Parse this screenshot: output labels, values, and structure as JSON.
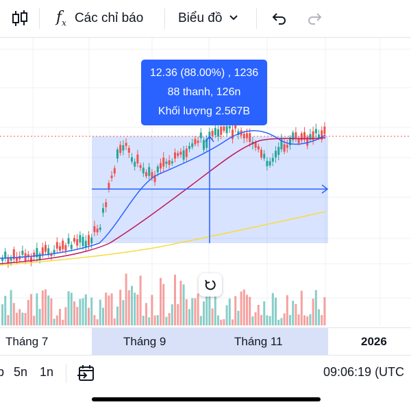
{
  "toolbar": {
    "indicators_label": "Các chỉ báo",
    "chart_type_label": "Biểu đồ",
    "icons": [
      "candles-icon",
      "indicator-fx-icon",
      "chevron-down-icon",
      "undo-icon",
      "redo-icon"
    ]
  },
  "tooltip": {
    "line1": "12.36 (88.00%) , 1236",
    "line2": "88 thanh, 126n",
    "line3": "Khối lượng 2.567B"
  },
  "time_axis": {
    "labels": [
      "Tháng 7",
      "Tháng 9",
      "Tháng 11",
      "2026"
    ]
  },
  "bottom_bar": {
    "ranges": [
      "b",
      "5n",
      "1n"
    ],
    "time": "09:06:19 (UTC"
  },
  "colors": {
    "up": "#26a69a",
    "down": "#ef5350",
    "accent": "#2962ff",
    "ma_fast": "#2962ff",
    "ma_mid": "#c2185b",
    "ma_slow": "#f7dc3d"
  },
  "chart_data": {
    "type": "candlestick",
    "measure": {
      "change": "12.36",
      "change_percent": "88.00%",
      "ticks": "1236",
      "bars": 88,
      "days": "126n",
      "volume": "2.567B"
    }
  }
}
